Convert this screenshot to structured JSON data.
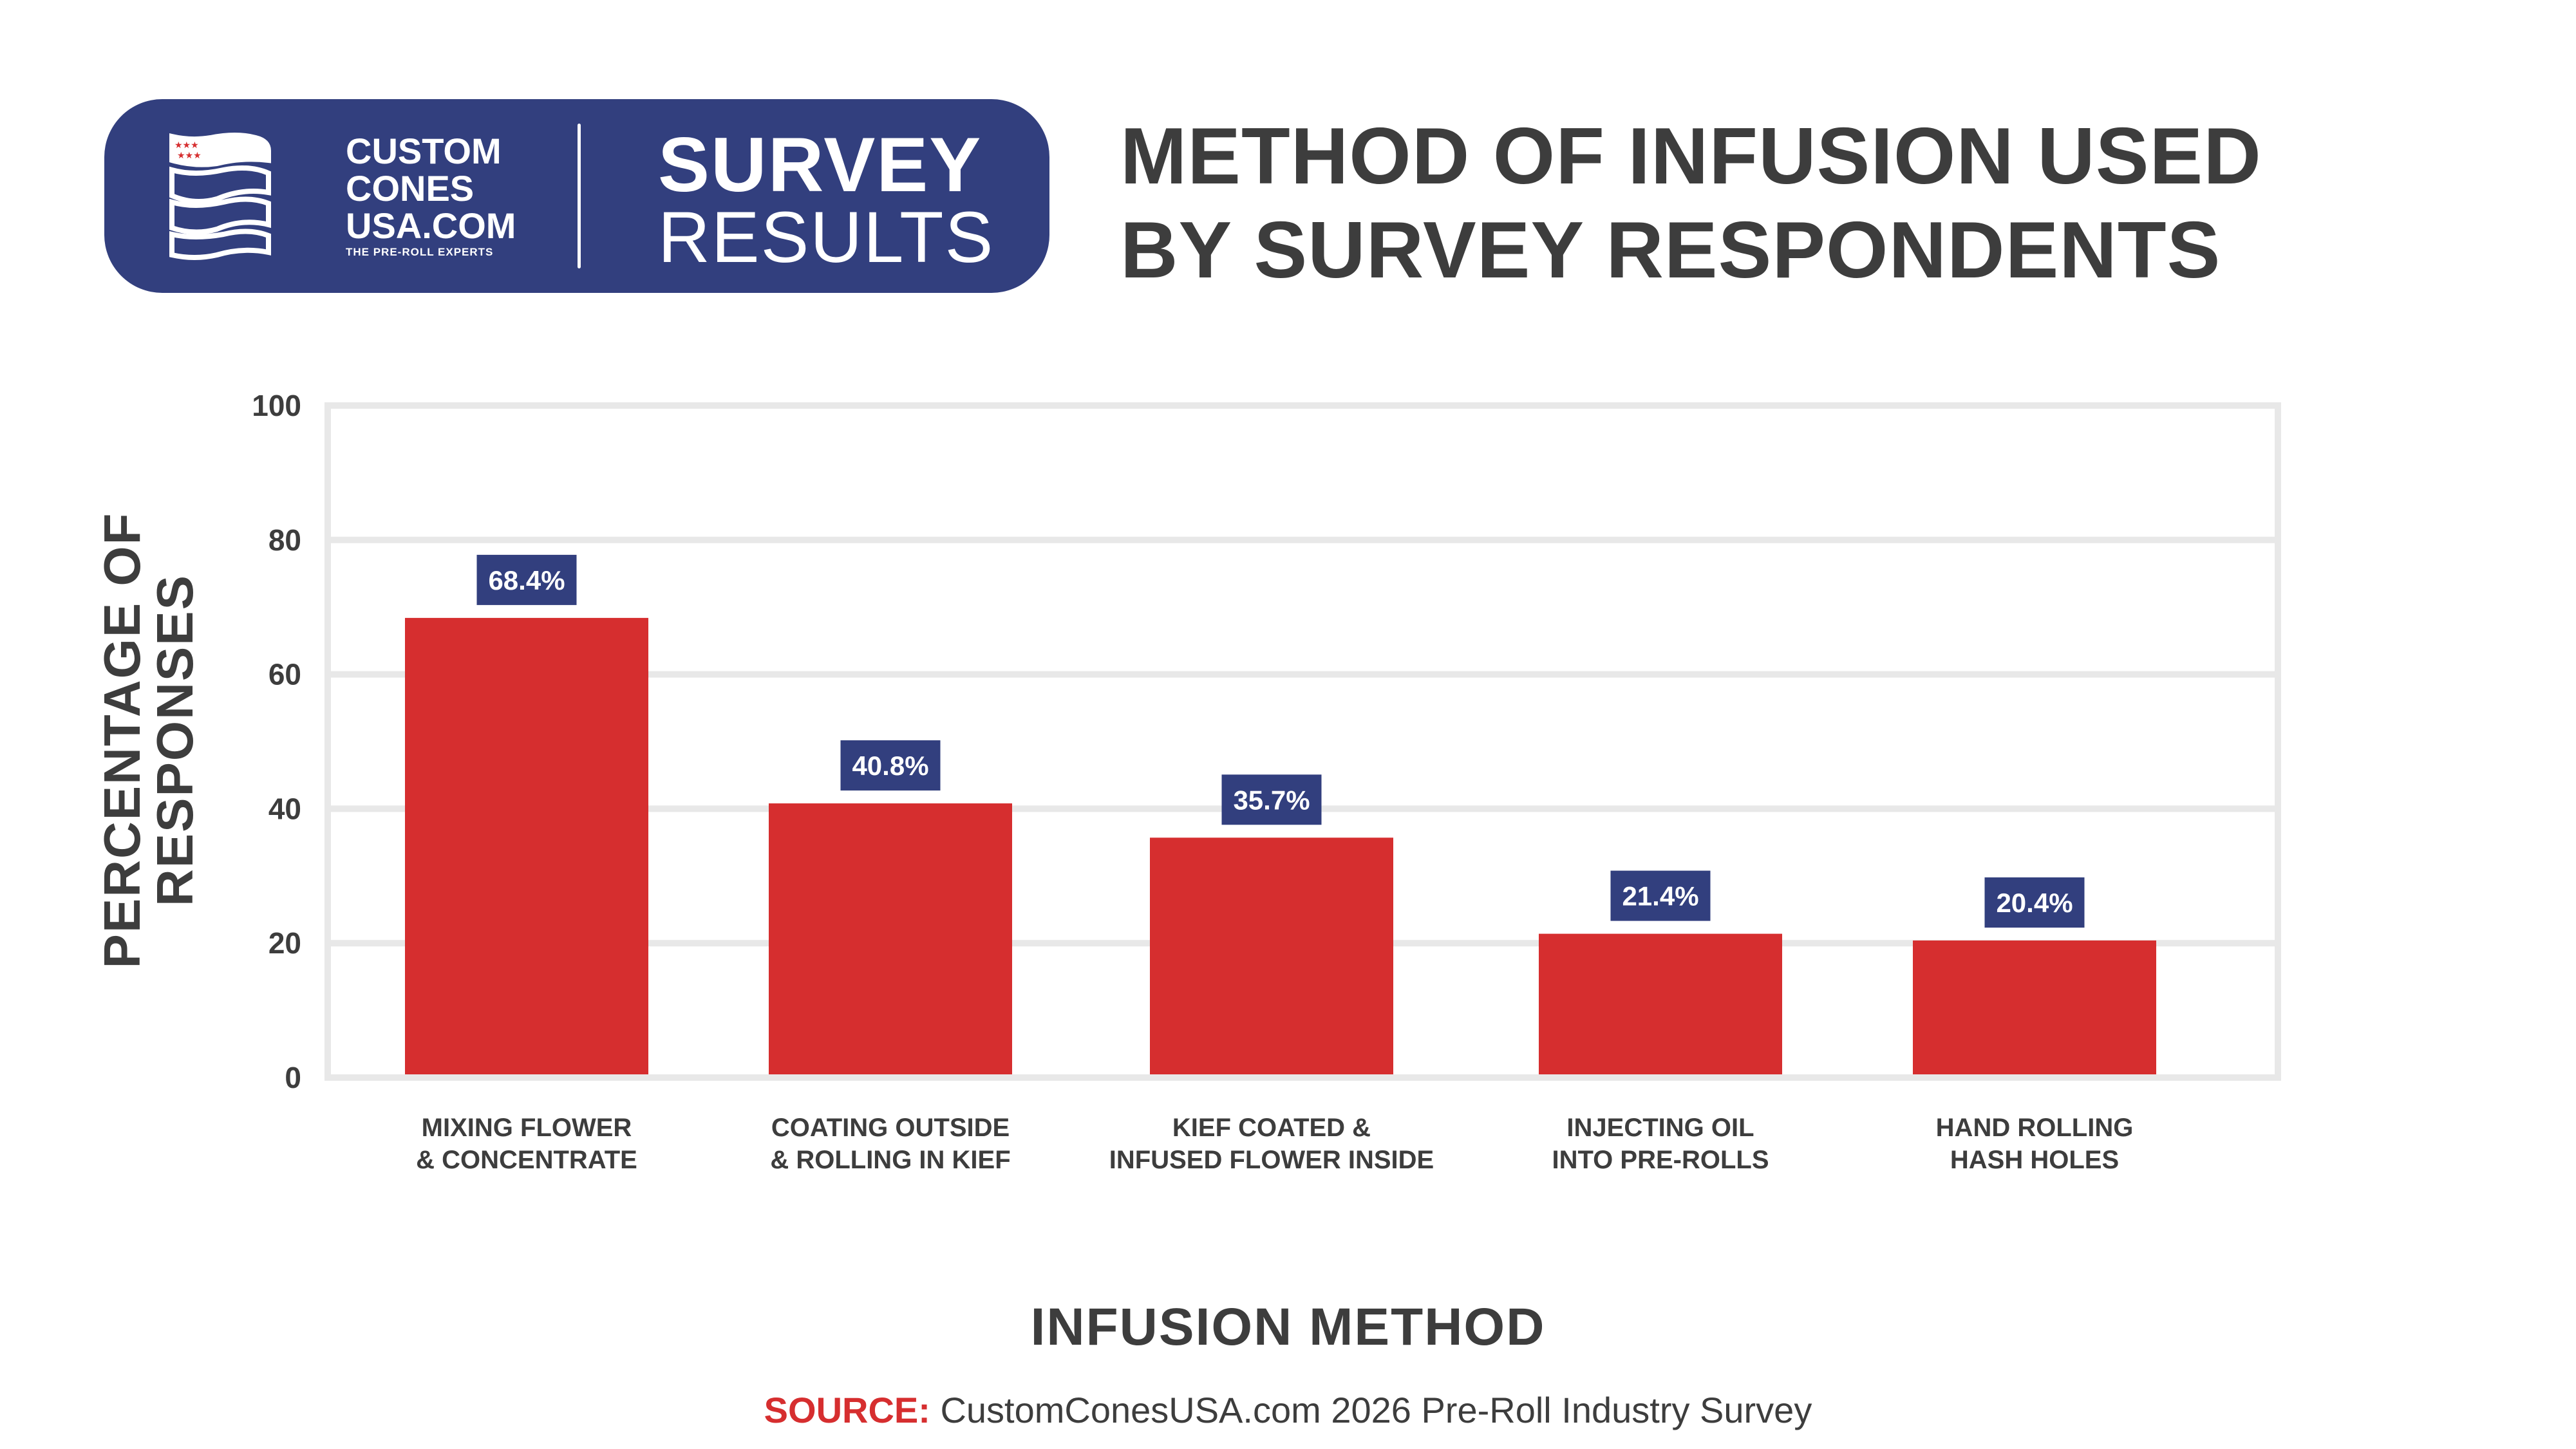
{
  "header": {
    "brand_lines": [
      "CUSTOM",
      "CONES",
      "USA.COM"
    ],
    "brand_tagline": "THE PRE-ROLL EXPERTS",
    "badge_title": "SURVEY",
    "badge_subtitle": "RESULTS",
    "logo_icon": "rolled-cones-flag-icon"
  },
  "colors": {
    "navy": "#323f7e",
    "red": "#d62e2f",
    "grid": "#e8e8e8",
    "text": "#3d3d3d"
  },
  "chart_data": {
    "type": "bar",
    "title_lines": [
      "METHOD OF INFUSION USED",
      "BY SURVEY RESPONDENTS"
    ],
    "categories": [
      [
        "MIXING FLOWER",
        "& CONCENTRATE"
      ],
      [
        "COATING OUTSIDE",
        "& ROLLING IN KIEF"
      ],
      [
        "KIEF COATED &",
        "INFUSED FLOWER INSIDE"
      ],
      [
        "INJECTING OIL",
        "INTO PRE-ROLLS"
      ],
      [
        "HAND ROLLING",
        "HASH HOLES"
      ]
    ],
    "values": [
      68.4,
      40.8,
      35.7,
      21.4,
      20.4
    ],
    "data_labels": [
      "68.4%",
      "40.8%",
      "35.7%",
      "21.4%",
      "20.4%"
    ],
    "ylabel_lines": [
      "PERCENTAGE OF",
      "RESPONSES"
    ],
    "xlabel": "INFUSION METHOD",
    "ylim": [
      0,
      100
    ],
    "yticks": [
      "0",
      "20",
      "40",
      "60",
      "80",
      "100"
    ],
    "grid": true
  },
  "source": {
    "label": "SOURCE:",
    "text": " CustomConesUSA.com 2026 Pre-Roll Industry Survey"
  }
}
